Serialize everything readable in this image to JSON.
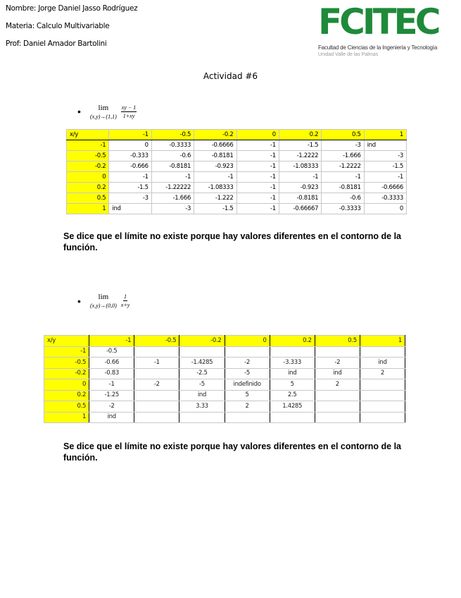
{
  "header": {
    "name": "Nombre: Jorge Daniel Jasso Rodríguez",
    "subject": "Materia: Calculo Multivariable",
    "prof": "Prof: Daniel Amador Bartolini"
  },
  "logo": {
    "text": "FCITEC",
    "line1": "Facultad de Ciencias de la Ingeniería y Tecnología",
    "line2": "Unidad Valle de las Palmas",
    "color": "#1e8a3a"
  },
  "title": "Actividad #6",
  "problems": [
    {
      "bullet": "•",
      "lim": "lim",
      "under": "(x,y)→(1,1)",
      "num": "xy − 1",
      "den": "1+xy",
      "table": {
        "corner": "x/y",
        "cols": [
          "-1",
          "-0.5",
          "-0.2",
          "0",
          "0.2",
          "0.5",
          "1"
        ],
        "rows": [
          {
            "x": "-1",
            "cells": [
              "0",
              "-0.3333",
              "-0.6666",
              "-1",
              "-1.5",
              "-3",
              "ind"
            ]
          },
          {
            "x": "-0.5",
            "cells": [
              "-0.333",
              "-0.6",
              "-0.8181",
              "-1",
              "-1.2222",
              "-1.666",
              "-3"
            ]
          },
          {
            "x": "-0.2",
            "cells": [
              "-0.666",
              "-0.8181",
              "-0.923",
              "-1",
              "-1.08333",
              "-1.2222",
              "-1.5"
            ]
          },
          {
            "x": "0",
            "cells": [
              "-1",
              "-1",
              "-1",
              "-1",
              "-1",
              "-1",
              "-1"
            ]
          },
          {
            "x": "0.2",
            "cells": [
              "-1.5",
              "-1.22222",
              "-1.08333",
              "-1",
              "-0.923",
              "-0.8181",
              "-0.6666"
            ]
          },
          {
            "x": "0.5",
            "cells": [
              "-3",
              "-1.666",
              "-1.222",
              "-1",
              "-0.8181",
              "-0.6",
              "-0.3333"
            ]
          },
          {
            "x": "1",
            "cells": [
              "ind",
              "-3",
              "-1.5",
              "-1",
              "-0.66667",
              "-0.3333",
              "0"
            ]
          }
        ]
      },
      "conclusion": "Se dice que el límite no existe porque hay valores diferentes en el contorno de la función."
    },
    {
      "bullet": "•",
      "lim": "lim",
      "under": "(x,y)→(0,0)",
      "num": "1",
      "den": "x+y",
      "table": {
        "corner": "x/y",
        "cols": [
          "-1",
          "-0.5",
          "-0.2",
          "0",
          "0.2",
          "0.5",
          "1"
        ],
        "rows": [
          {
            "x": "-1",
            "cells": [
              "-0.5",
              "",
              "",
              "",
              "",
              "",
              ""
            ]
          },
          {
            "x": "-0.5",
            "cells": [
              "-0.66",
              "-1",
              "-1.4285",
              "-2",
              "-3.333",
              "-2",
              "ind"
            ]
          },
          {
            "x": "-0.2",
            "cells": [
              "-0.83",
              "",
              "-2.5",
              "-5",
              "ind",
              "ind",
              "2"
            ]
          },
          {
            "x": "0",
            "cells": [
              "-1",
              "-2",
              "-5",
              "indefinido",
              "5",
              "2",
              ""
            ]
          },
          {
            "x": "0.2",
            "cells": [
              "-1.25",
              "",
              "ind",
              "5",
              "2.5",
              "",
              ""
            ]
          },
          {
            "x": "0.5",
            "cells": [
              "-2",
              "",
              "3.33",
              "2",
              "1.4285",
              "",
              ""
            ]
          },
          {
            "x": "1",
            "cells": [
              "ind",
              "",
              "",
              "",
              "",
              "",
              ""
            ]
          }
        ]
      },
      "conclusion": "Se dice que el límite no existe porque hay valores diferentes en el contorno de la función."
    }
  ]
}
